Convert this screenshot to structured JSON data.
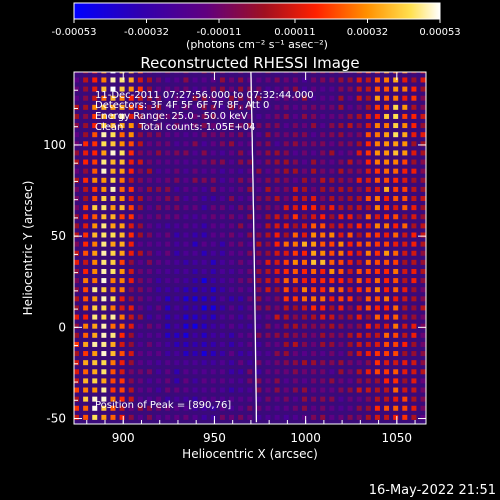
{
  "chart_data": {
    "type": "heatmap",
    "title": "Reconstructed RHESSI Image",
    "xlabel": "Heliocentric X (arcsec)",
    "ylabel": "Heliocentric Y (arcsec)",
    "xlim": [
      873,
      1066
    ],
    "ylim": [
      -53,
      140
    ],
    "x_ticks": [
      900,
      950,
      1000,
      1050
    ],
    "y_ticks": [
      -50,
      0,
      50,
      100
    ],
    "x_tick_labels": [
      "900",
      "950",
      "1000",
      "1050"
    ],
    "y_tick_labels": [
      "-50",
      "0",
      "50",
      "100"
    ],
    "colorbar": {
      "ticks": [
        -0.00053,
        -0.00032,
        -0.00011,
        0.00011,
        0.00032,
        0.00053
      ],
      "tick_labels": [
        "-0.00053",
        "-0.00032",
        "-0.00011",
        "0.00011",
        "0.00032",
        "0.00053"
      ],
      "units": "(photons cm⁻² s⁻¹ asec⁻²)",
      "colors": [
        "#0000ff",
        "#2a00a0",
        "#5a0080",
        "#8b1a3a",
        "#e02010",
        "#ff8a00",
        "#ffe060",
        "#ffffff"
      ]
    },
    "annotations": [
      "11-Dec-2011 07:27:56.000 to 07:32:44.000",
      "Detectors: 3F 4F 5F 6F 7F 8F, Att 0",
      "Energy Range: 25.0 - 50.0 keV",
      "Clean     Total counts: 1.05E+04",
      "Position of Peak = [890,76]"
    ],
    "limb_color": "#ffffff",
    "grid": false
  },
  "footer": {
    "timestamp": "16-May-2022 21:51"
  }
}
